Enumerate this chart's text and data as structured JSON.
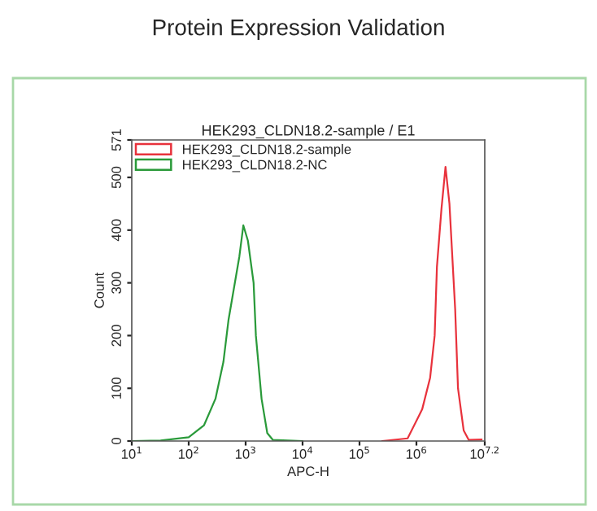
{
  "chart_data": {
    "type": "line",
    "title": "Protein Expression Validation",
    "subtitle": "HEK293_CLDN18.2-sample / E1",
    "xlabel": "APC-H",
    "ylabel": "Count",
    "log": "x",
    "xlim": [
      10,
      15848932
    ],
    "xticks": [
      {
        "value": 10,
        "label": "10$^{1}$"
      },
      {
        "value": 100,
        "label": "10$^{2}$"
      },
      {
        "value": 1000,
        "label": "10$^{3}$"
      },
      {
        "value": 10000,
        "label": "10$^{4}$"
      },
      {
        "value": 100000,
        "label": "10$^{5}$"
      },
      {
        "value": 1000000,
        "label": "10$^{6}$"
      },
      {
        "value": 15848932,
        "label": "10$^{7.2}$"
      }
    ],
    "ylim": [
      0,
      571
    ],
    "yticks": [
      0,
      100,
      200,
      300,
      400,
      500,
      571
    ],
    "grid": false,
    "legend": "top left",
    "marker": "none",
    "line_style": "solid",
    "series": [
      {
        "name": "HEK293_CLDN18.2-sample",
        "color": "#e8323c",
        "x": [
          250000,
          700000,
          1260000,
          1740000,
          2090000,
          2290000,
          2750000,
          3240000,
          3800000,
          4790000,
          5370000,
          6760000,
          8300000,
          14000000
        ],
        "values": [
          0,
          5,
          60,
          120,
          200,
          330,
          440,
          520,
          450,
          250,
          100,
          20,
          2,
          3
        ]
      },
      {
        "name": "HEK293_CLDN18.2-NC",
        "color": "#2a9a3a",
        "x": [
          10,
          32,
          100,
          186,
          295,
          407,
          501,
          776,
          912,
          1096,
          1380,
          1514,
          1905,
          2399,
          3020,
          10000
        ],
        "values": [
          0,
          1,
          7,
          30,
          80,
          150,
          230,
          350,
          409,
          380,
          300,
          200,
          80,
          15,
          2,
          0
        ]
      }
    ]
  }
}
